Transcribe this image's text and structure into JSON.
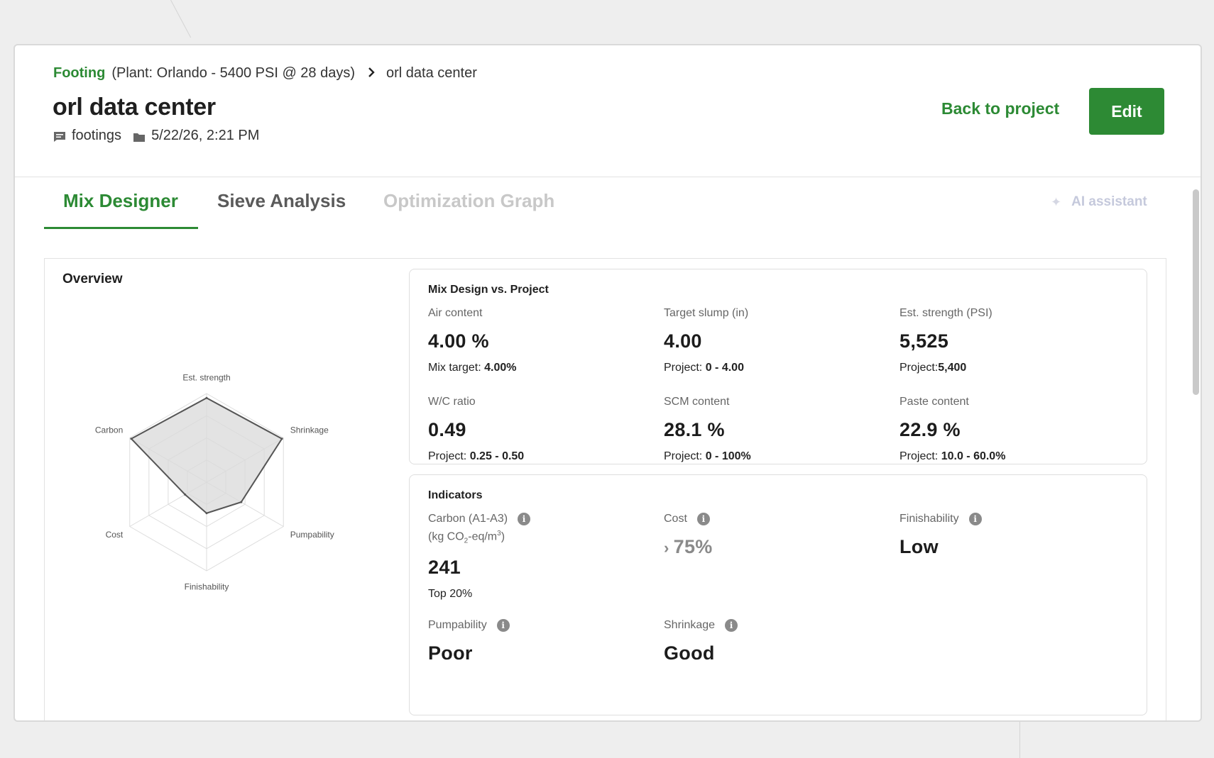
{
  "breadcrumb": {
    "link": "Footing",
    "plant": "(Plant: Orlando - 5400 PSI @ 28 days)",
    "current": "orl data center"
  },
  "header": {
    "title": "orl data center",
    "tag": "footings",
    "timestamp": "5/22/26, 2:21 PM",
    "back_label": "Back to project",
    "edit_label": "Edit"
  },
  "tabs": [
    {
      "label": "Mix Designer",
      "state": "active"
    },
    {
      "label": "Sieve Analysis",
      "state": "normal"
    },
    {
      "label": "Optimization Graph",
      "state": "disabled"
    }
  ],
  "ai_assistant": {
    "label": "AI assistant"
  },
  "overview": {
    "title": "Overview",
    "radar": {
      "axes": [
        "Est. strength",
        "Shrinkage",
        "Pumpability",
        "Finishability",
        "Cost",
        "Carbon"
      ],
      "values": [
        0.95,
        0.98,
        0.45,
        0.35,
        0.28,
        0.98
      ],
      "rings": 4,
      "fill": "#d9d9d9",
      "stroke": "#555555"
    }
  },
  "mix_vs_project": {
    "title": "Mix Design vs. Project",
    "metrics": [
      {
        "label": "Air content",
        "value": "4.00 %",
        "sub_label": "Mix target:",
        "sub_value": "4.00%"
      },
      {
        "label": "Target slump (in)",
        "value": "4.00",
        "sub_label": "Project:",
        "sub_value": "0 - 4.00"
      },
      {
        "label": "Est. strength (PSI)",
        "value": "5,525",
        "sub_label": "Project:",
        "sub_value": "5,400"
      },
      {
        "label": "W/C ratio",
        "value": "0.49",
        "sub_label": "Project:",
        "sub_value": "0.25 - 0.50"
      },
      {
        "label": "SCM content",
        "value": "28.1 %",
        "sub_label": "Project:",
        "sub_value": "0 - 100%"
      },
      {
        "label": "Paste content",
        "value": "22.9 %",
        "sub_label": "Project:",
        "sub_value": "10.0 - 60.0%"
      }
    ]
  },
  "indicators": {
    "title": "Indicators",
    "carbon": {
      "label": "Carbon (A1-A3)",
      "unit_prefix": "(kg CO",
      "unit_sub": "2",
      "unit_mid": "-eq/m",
      "unit_sup": "3",
      "unit_suffix": ")",
      "value": "241",
      "sub": "Top 20%"
    },
    "cost": {
      "label": "Cost",
      "value": "75%",
      "chevron": "›"
    },
    "finishability": {
      "label": "Finishability",
      "value": "Low"
    },
    "pumpability": {
      "label": "Pumpability",
      "value": "Poor"
    },
    "shrinkage": {
      "label": "Shrinkage",
      "value": "Good"
    }
  },
  "colors": {
    "brand": "#2c8a34",
    "disabled": "#c8c8c8"
  }
}
